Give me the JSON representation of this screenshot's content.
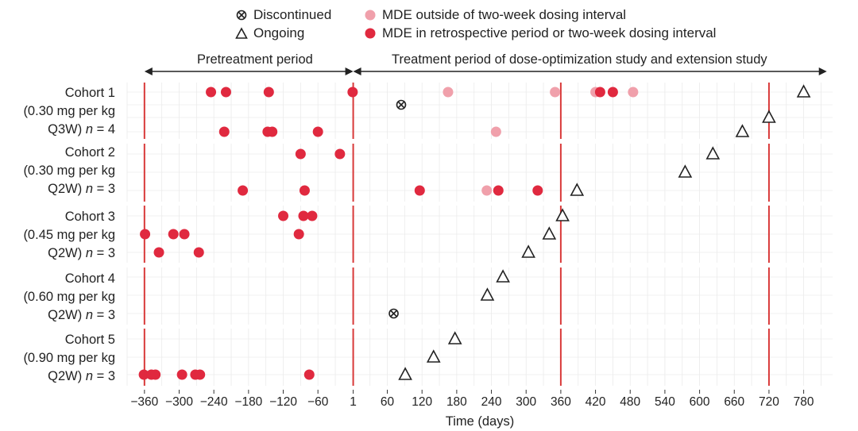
{
  "colors": {
    "mde_dark": "#e0293f",
    "mde_light": "#f0a0ab",
    "reference_line": "#d93a3a",
    "grid": "#ebebeb",
    "marker_outline": "#222222"
  },
  "legend": {
    "discontinued": "Discontinued",
    "ongoing": "Ongoing",
    "mde_outside": "MDE outside of two-week dosing interval",
    "mde_retro": "MDE in retrospective period or two-week dosing interval"
  },
  "periods": {
    "pretreatment": "Pretreatment period",
    "treatment": "Treatment period of dose-optimization study and extension study"
  },
  "chart_data": {
    "type": "scatter",
    "title": "",
    "xlabel": "Time (days)",
    "ylabel": "",
    "xlim": [
      -390,
      830
    ],
    "x_ticks": [
      -360,
      -300,
      -240,
      -180,
      -120,
      -60,
      1,
      60,
      120,
      180,
      240,
      300,
      360,
      420,
      480,
      540,
      600,
      660,
      720,
      780
    ],
    "x_tick_labels": [
      "−360",
      "−300",
      "−240",
      "−180",
      "−120",
      "−60",
      "1",
      "60",
      "120",
      "180",
      "240",
      "300",
      "360",
      "420",
      "480",
      "540",
      "600",
      "660",
      "720",
      "780"
    ],
    "reference_lines": [
      -360,
      1,
      360,
      720
    ],
    "cohorts": [
      {
        "name": "Cohort 1",
        "dose": "(0.30 mg per kg",
        "schedule": "Q3W)",
        "n": "4",
        "rows": [
          {
            "mde_retro": [
              -245,
              -219,
              -145,
              0,
              428,
              450
            ],
            "mde_outside": [
              165,
              350,
              420,
              485
            ],
            "ongoing": [
              780
            ],
            "discontinued": []
          },
          {
            "mde_retro": [],
            "mde_outside": [],
            "ongoing": [],
            "discontinued": [
              84
            ]
          },
          {
            "mde_retro": [],
            "mde_outside": [],
            "ongoing": [
              720
            ],
            "discontinued": []
          },
          {
            "mde_retro": [
              -222,
              -147,
              -139,
              -60
            ],
            "mde_outside": [
              248
            ],
            "ongoing": [
              674
            ],
            "discontinued": []
          }
        ]
      },
      {
        "name": "Cohort 2",
        "dose": "(0.30 mg per kg",
        "schedule": "Q2W)",
        "n": "3",
        "rows": [
          {
            "mde_retro": [
              -90,
              -22
            ],
            "mde_outside": [],
            "ongoing": [
              623
            ],
            "discontinued": []
          },
          {
            "mde_retro": [],
            "mde_outside": [],
            "ongoing": [
              575
            ],
            "discontinued": []
          },
          {
            "mde_retro": [
              -190,
              -83,
              116,
              252,
              320
            ],
            "mde_outside": [
              232
            ],
            "ongoing": [
              388
            ],
            "discontinued": []
          }
        ]
      },
      {
        "name": "Cohort 3",
        "dose": "(0.45 mg per kg",
        "schedule": "Q2W)",
        "n": "3",
        "rows": [
          {
            "mde_retro": [
              -120,
              -85,
              -70
            ],
            "mde_outside": [],
            "ongoing": [
              363
            ],
            "discontinued": []
          },
          {
            "mde_retro": [
              -359,
              -310,
              -291,
              -93
            ],
            "mde_outside": [],
            "ongoing": [
              340
            ],
            "discontinued": []
          },
          {
            "mde_retro": [
              -335,
              -266
            ],
            "mde_outside": [],
            "ongoing": [
              304
            ],
            "discontinued": []
          }
        ]
      },
      {
        "name": "Cohort 4",
        "dose": "(0.60 mg per kg",
        "schedule": "Q2W)",
        "n": "3",
        "rows": [
          {
            "mde_retro": [],
            "mde_outside": [],
            "ongoing": [
              260
            ],
            "discontinued": []
          },
          {
            "mde_retro": [],
            "mde_outside": [],
            "ongoing": [
              233
            ],
            "discontinued": []
          },
          {
            "mde_retro": [],
            "mde_outside": [],
            "ongoing": [],
            "discontinued": [
              71
            ]
          }
        ]
      },
      {
        "name": "Cohort 5",
        "dose": "(0.90 mg per kg",
        "schedule": "Q2W)",
        "n": "3",
        "rows": [
          {
            "mde_retro": [],
            "mde_outside": [],
            "ongoing": [
              177
            ],
            "discontinued": []
          },
          {
            "mde_retro": [],
            "mde_outside": [],
            "ongoing": [
              140
            ],
            "discontinued": []
          },
          {
            "mde_retro": [
              -361,
              -348,
              -341,
              -295,
              -272,
              -264,
              -75
            ],
            "mde_outside": [],
            "ongoing": [
              91
            ],
            "discontinued": []
          }
        ]
      }
    ]
  }
}
